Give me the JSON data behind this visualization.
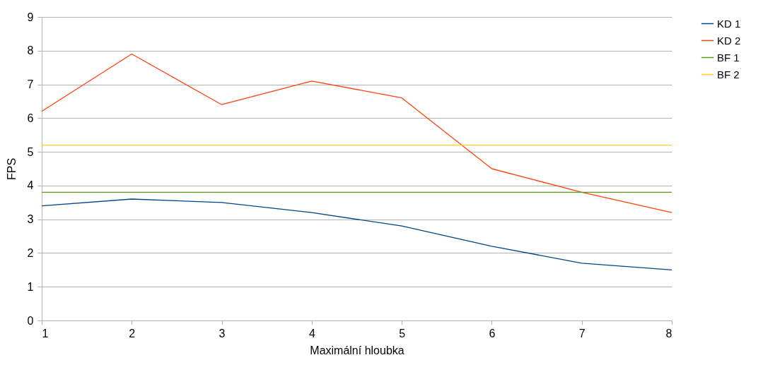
{
  "chart_data": {
    "type": "line",
    "xlabel": "Maximální hloubka",
    "ylabel": "FPS",
    "x": [
      1,
      2,
      3,
      4,
      5,
      6,
      7,
      8
    ],
    "series": [
      {
        "name": "KD 1",
        "color": "#004586",
        "values": [
          3.4,
          3.6,
          3.5,
          3.2,
          2.8,
          2.2,
          1.7,
          1.5
        ]
      },
      {
        "name": "KD 2",
        "color": "#ff420e",
        "values": [
          6.2,
          7.9,
          6.4,
          7.1,
          6.6,
          4.5,
          3.8,
          3.2
        ]
      },
      {
        "name": "BF 1",
        "color": "#579d1c",
        "values": [
          3.8,
          3.8,
          3.8,
          3.8,
          3.8,
          3.8,
          3.8,
          3.8
        ]
      },
      {
        "name": "BF 2",
        "color": "#ffd320",
        "values": [
          5.2,
          5.2,
          5.2,
          5.2,
          5.2,
          5.2,
          5.2,
          5.2
        ]
      }
    ],
    "xlim": [
      1,
      8
    ],
    "xticks": [
      1,
      2,
      3,
      4,
      5,
      6,
      7,
      8
    ],
    "ylim": [
      0,
      9
    ],
    "yticks": [
      0,
      1,
      2,
      3,
      4,
      5,
      6,
      7,
      8,
      9
    ],
    "grid": "y",
    "legend": "right"
  }
}
